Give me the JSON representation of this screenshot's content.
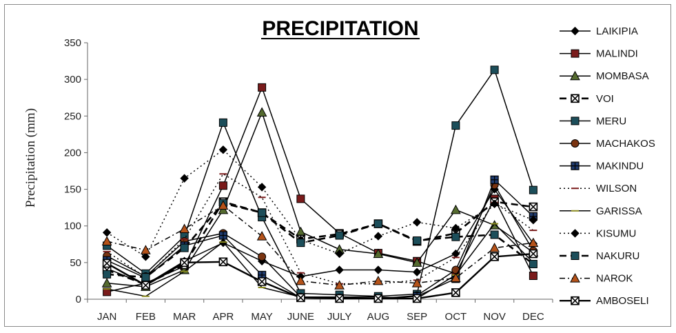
{
  "chart_data": {
    "type": "line",
    "title": "PRECIPITATION",
    "xlabel": "",
    "ylabel": "Precipitation (mm)",
    "categories": [
      "JAN",
      "FEB",
      "MAR",
      "APR",
      "MAY",
      "JUNE",
      "JULY",
      "AUG",
      "SEP",
      "OCT",
      "NOV",
      "DEC"
    ],
    "ylim": [
      0,
      350
    ],
    "yticks": [
      0,
      50,
      100,
      150,
      200,
      250,
      300,
      350
    ],
    "grid": false,
    "legend_position": "right",
    "series": [
      {
        "name": "LAIKIPIA",
        "marker": "diamond",
        "dash": "solid",
        "color": "#000000",
        "values": [
          42,
          20,
          52,
          77,
          52,
          31,
          40,
          40,
          37,
          62,
          150,
          76
        ]
      },
      {
        "name": "MALINDI",
        "marker": "square",
        "dash": "solid",
        "color": "#7a1b1b",
        "values": [
          10,
          22,
          45,
          155,
          289,
          137,
          90,
          63,
          52,
          35,
          137,
          32
        ]
      },
      {
        "name": "MOMBASA",
        "marker": "triangle",
        "dash": "solid",
        "color": "#556b2f",
        "values": [
          22,
          17,
          40,
          122,
          255,
          92,
          68,
          62,
          50,
          122,
          101,
          64
        ]
      },
      {
        "name": "VOI",
        "marker": "x",
        "dash": "dashed",
        "color": "#000000",
        "values": [
          40,
          20,
          47,
          133,
          118,
          82,
          89,
          103,
          79,
          90,
          133,
          126
        ]
      },
      {
        "name": "MERU",
        "marker": "square",
        "dash": "solid",
        "color": "#1c4e5a",
        "values": [
          73,
          35,
          86,
          241,
          112,
          8,
          6,
          4,
          7,
          237,
          313,
          149
        ]
      },
      {
        "name": "MACHAKOS",
        "marker": "circle",
        "dash": "solid",
        "color": "#7a3411",
        "values": [
          59,
          31,
          79,
          90,
          58,
          3,
          2,
          1,
          5,
          40,
          156,
          66
        ]
      },
      {
        "name": "MAKINDU",
        "marker": "plus",
        "dash": "solid",
        "color": "#1f3b6e",
        "values": [
          53,
          29,
          73,
          87,
          33,
          2,
          1,
          1,
          4,
          28,
          163,
          113
        ]
      },
      {
        "name": "WILSON",
        "marker": "dash",
        "dash": "dotted",
        "color": "#7a1b1b",
        "values": [
          65,
          30,
          82,
          171,
          139,
          36,
          21,
          21,
          26,
          57,
          132,
          94
        ]
      },
      {
        "name": "GARISSA",
        "marker": "dash",
        "dash": "solid",
        "color": "#8a8a20",
        "values": [
          14,
          4,
          38,
          78,
          16,
          3,
          3,
          3,
          1,
          33,
          103,
          50
        ]
      },
      {
        "name": "KISUMU",
        "marker": "diamond",
        "dash": "dotted",
        "color": "#000000",
        "values": [
          91,
          58,
          165,
          204,
          153,
          81,
          62,
          86,
          105,
          97,
          130,
          108
        ]
      },
      {
        "name": "NAKURU",
        "marker": "square",
        "dash": "dashed",
        "color": "#1c4e5a",
        "values": [
          34,
          30,
          70,
          131,
          118,
          77,
          87,
          103,
          80,
          85,
          88,
          48
        ]
      },
      {
        "name": "NAROK",
        "marker": "triangle",
        "dash": "dashdot",
        "color": "#b5531a",
        "values": [
          79,
          67,
          96,
          128,
          86,
          25,
          19,
          25,
          22,
          29,
          70,
          77
        ]
      },
      {
        "name": "AMBOSELI",
        "marker": "x",
        "dash": "solid",
        "color": "#000000",
        "values": [
          49,
          19,
          50,
          51,
          24,
          2,
          1,
          1,
          1,
          9,
          58,
          62
        ]
      }
    ]
  }
}
